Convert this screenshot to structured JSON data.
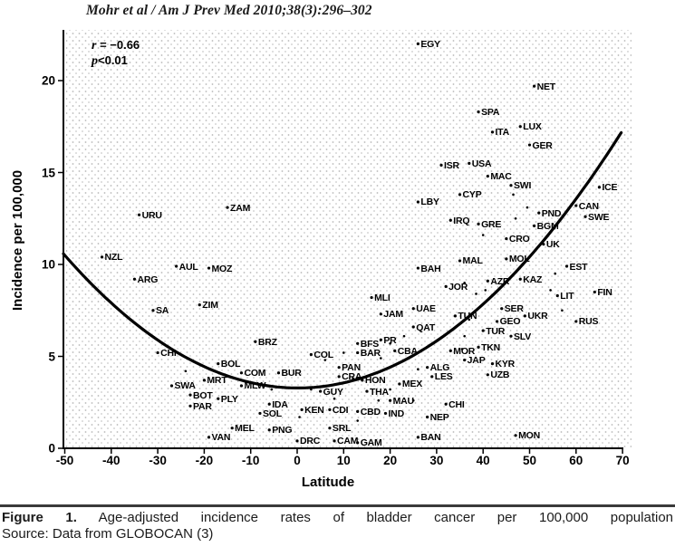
{
  "header": {
    "citation": "Mohr et al / Am J Prev Med 2010;38(3):296–302"
  },
  "chart_data": {
    "type": "scatter",
    "title": "",
    "xlabel": "Latitude",
    "ylabel": "Incidence per 100,000",
    "xlim": [
      -50,
      70
    ],
    "ylim": [
      0,
      22.5
    ],
    "x_ticks": [
      -50,
      -40,
      -30,
      -20,
      -10,
      0,
      10,
      20,
      30,
      40,
      50,
      60,
      70
    ],
    "y_ticks": [
      0,
      5,
      10,
      15,
      20
    ],
    "grid": "fine dotted halftone background, no gridlines",
    "legend": "none",
    "annotation": {
      "r_symbol": "r",
      "r_rest": " = −0.66",
      "p_symbol": "p",
      "p_rest": "<0.01"
    },
    "trend_curve": {
      "type": "quadratic",
      "equation": "incidence = 0.00287·lat² − 0.0008·lat + 3.28",
      "a": 0.00287,
      "b": -0.0008,
      "c": 3.28,
      "lat_range": [
        -50.3,
        70.3
      ],
      "color": "#000000"
    },
    "points": [
      {
        "label": "EGY",
        "lat": 26,
        "inc": 22.0
      },
      {
        "label": "NET",
        "lat": 51,
        "inc": 19.7
      },
      {
        "label": "SPA",
        "lat": 39,
        "inc": 18.3
      },
      {
        "label": "LUX",
        "lat": 48,
        "inc": 17.5
      },
      {
        "label": "ITA",
        "lat": 42,
        "inc": 17.2
      },
      {
        "label": "GER",
        "lat": 50,
        "inc": 16.5
      },
      {
        "label": "USA",
        "lat": 37,
        "inc": 15.5
      },
      {
        "label": "ISR",
        "lat": 31,
        "inc": 15.4
      },
      {
        "label": "MAC",
        "lat": 41,
        "inc": 14.8
      },
      {
        "label": "SWI",
        "lat": 46,
        "inc": 14.3
      },
      {
        "label": "ICE",
        "lat": 65,
        "inc": 14.2
      },
      {
        "label": "CYP",
        "lat": 35,
        "inc": 13.8
      },
      {
        "label": "LBY",
        "lat": 26,
        "inc": 13.4
      },
      {
        "label": "CAN",
        "lat": 60,
        "inc": 13.2
      },
      {
        "label": "ZAM",
        "lat": -15,
        "inc": 13.1
      },
      {
        "label": "PND",
        "lat": 52,
        "inc": 12.8
      },
      {
        "label": "URU",
        "lat": -34,
        "inc": 12.7
      },
      {
        "label": "SWE",
        "lat": 62,
        "inc": 12.6
      },
      {
        "label": "IRQ",
        "lat": 33,
        "inc": 12.4
      },
      {
        "label": "GRE",
        "lat": 39,
        "inc": 12.2
      },
      {
        "label": "BGM",
        "lat": 51,
        "inc": 12.1
      },
      {
        "label": "CRO",
        "lat": 45,
        "inc": 11.4
      },
      {
        "label": "UK",
        "lat": 53,
        "inc": 11.1
      },
      {
        "label": "NZL",
        "lat": -42,
        "inc": 10.4
      },
      {
        "label": "MOL",
        "lat": 45,
        "inc": 10.3
      },
      {
        "label": "MAL",
        "lat": 35,
        "inc": 10.2
      },
      {
        "label": "AUL",
        "lat": -26,
        "inc": 9.9
      },
      {
        "label": "EST",
        "lat": 58,
        "inc": 9.9
      },
      {
        "label": "MOZ",
        "lat": -19,
        "inc": 9.8
      },
      {
        "label": "BAH",
        "lat": 26,
        "inc": 9.8
      },
      {
        "label": "ARG",
        "lat": -35,
        "inc": 9.2
      },
      {
        "label": "KAZ",
        "lat": 48,
        "inc": 9.2
      },
      {
        "label": "AZR",
        "lat": 41,
        "inc": 9.1
      },
      {
        "label": "JOR",
        "lat": 32,
        "inc": 8.8
      },
      {
        "label": "FIN",
        "lat": 64,
        "inc": 8.5
      },
      {
        "label": "LIT",
        "lat": 56,
        "inc": 8.3
      },
      {
        "label": "MLI",
        "lat": 16,
        "inc": 8.2
      },
      {
        "label": "ZIM",
        "lat": -21,
        "inc": 7.8
      },
      {
        "label": "UAE",
        "lat": 25,
        "inc": 7.6
      },
      {
        "label": "SER",
        "lat": 44,
        "inc": 7.6
      },
      {
        "label": "SA",
        "lat": -31,
        "inc": 7.5
      },
      {
        "label": "JAM",
        "lat": 18,
        "inc": 7.3
      },
      {
        "label": "TUN",
        "lat": 34,
        "inc": 7.2
      },
      {
        "label": "UKR",
        "lat": 49,
        "inc": 7.2
      },
      {
        "label": "RUS",
        "lat": 60,
        "inc": 6.9
      },
      {
        "label": "GEO",
        "lat": 43,
        "inc": 6.9
      },
      {
        "label": "QAT",
        "lat": 25,
        "inc": 6.6
      },
      {
        "label": "TUR",
        "lat": 40,
        "inc": 6.4
      },
      {
        "label": "SLV",
        "lat": 46,
        "inc": 6.1
      },
      {
        "label": "PR",
        "lat": 18,
        "inc": 5.9
      },
      {
        "label": "BRZ",
        "lat": -9,
        "inc": 5.8
      },
      {
        "label": "BFS",
        "lat": 13,
        "inc": 5.7
      },
      {
        "label": "TKN",
        "lat": 39,
        "inc": 5.5
      },
      {
        "label": "MOR",
        "lat": 33,
        "inc": 5.3
      },
      {
        "label": "CBA",
        "lat": 21,
        "inc": 5.3
      },
      {
        "label": "BAR",
        "lat": 13,
        "inc": 5.2
      },
      {
        "label": "CHI",
        "lat": -30,
        "inc": 5.2
      },
      {
        "label": "COL",
        "lat": 3,
        "inc": 5.1
      },
      {
        "label": "JAP",
        "lat": 36,
        "inc": 4.8
      },
      {
        "label": "KYR",
        "lat": 42,
        "inc": 4.6
      },
      {
        "label": "BOL",
        "lat": -17,
        "inc": 4.6
      },
      {
        "label": "ALG",
        "lat": 28,
        "inc": 4.4
      },
      {
        "label": "PAN",
        "lat": 9,
        "inc": 4.4
      },
      {
        "label": "COM",
        "lat": -12,
        "inc": 4.1
      },
      {
        "label": "BUR",
        "lat": -4,
        "inc": 4.1
      },
      {
        "label": "UZB",
        "lat": 41,
        "inc": 4.0
      },
      {
        "label": "LES",
        "lat": 29,
        "inc": 3.9
      },
      {
        "label": "CRA",
        "lat": 9,
        "inc": 3.9
      },
      {
        "label": "MRT",
        "lat": -20,
        "inc": 3.7
      },
      {
        "label": "HON",
        "lat": 14,
        "inc": 3.7
      },
      {
        "label": "MEX",
        "lat": 22,
        "inc": 3.5
      },
      {
        "label": "SWA",
        "lat": -27,
        "inc": 3.4
      },
      {
        "label": "MLW",
        "lat": -12,
        "inc": 3.4
      },
      {
        "label": "GUY",
        "lat": 5,
        "inc": 3.1
      },
      {
        "label": "THA",
        "lat": 15,
        "inc": 3.1
      },
      {
        "label": "BOT",
        "lat": -23,
        "inc": 2.9
      },
      {
        "label": "PLY",
        "lat": -17,
        "inc": 2.7
      },
      {
        "label": "MAU",
        "lat": 20,
        "inc": 2.6
      },
      {
        "label": "IDA",
        "lat": -6,
        "inc": 2.4
      },
      {
        "label": "CHI",
        "lat": 32,
        "inc": 2.4
      },
      {
        "label": "PAR",
        "lat": -23,
        "inc": 2.3
      },
      {
        "label": "KEN",
        "lat": 1,
        "inc": 2.1
      },
      {
        "label": "CDI",
        "lat": 7,
        "inc": 2.1
      },
      {
        "label": "CBD",
        "lat": 13,
        "inc": 2.0
      },
      {
        "label": "SOL",
        "lat": -8,
        "inc": 1.9
      },
      {
        "label": "IND",
        "lat": 19,
        "inc": 1.9
      },
      {
        "label": "NEP",
        "lat": 28,
        "inc": 1.7
      },
      {
        "label": "MEL",
        "lat": -14,
        "inc": 1.1
      },
      {
        "label": "SRL",
        "lat": 7,
        "inc": 1.1
      },
      {
        "label": "PNG",
        "lat": -6,
        "inc": 1.0
      },
      {
        "label": "MON",
        "lat": 47,
        "inc": 0.7
      },
      {
        "label": "BAN",
        "lat": 26,
        "inc": 0.6
      },
      {
        "label": "VAN",
        "lat": -19,
        "inc": 0.6
      },
      {
        "label": "DRC",
        "lat": 0,
        "inc": 0.4
      },
      {
        "label": "CAM",
        "lat": 8,
        "inc": 0.4
      },
      {
        "label": "GAM",
        "lat": 13,
        "inc": 0.3
      }
    ],
    "unlabeled_points": [
      [
        46.5,
        13.8
      ],
      [
        49.5,
        13.1
      ],
      [
        47,
        12.5
      ],
      [
        40,
        11.6
      ],
      [
        36,
        9.0
      ],
      [
        38.5,
        8.4
      ],
      [
        55.5,
        9.5
      ],
      [
        54.5,
        8.6
      ],
      [
        57,
        7.5
      ],
      [
        40.5,
        8.6
      ],
      [
        37,
        7.0
      ],
      [
        23,
        6.1
      ],
      [
        20,
        5.7
      ],
      [
        10,
        5.2
      ],
      [
        18,
        4.9
      ],
      [
        26,
        4.3
      ],
      [
        36,
        6.1
      ],
      [
        35.5,
        5.4
      ],
      [
        6,
        4.8
      ],
      [
        12,
        3.8
      ],
      [
        20,
        3.2
      ],
      [
        25,
        2.6
      ],
      [
        8,
        2.7
      ],
      [
        3,
        3.2
      ],
      [
        -5.5,
        3.2
      ],
      [
        0.5,
        1.7
      ],
      [
        13,
        1.5
      ],
      [
        17.5,
        2.6
      ],
      [
        -24,
        4.2
      ]
    ]
  },
  "caption": {
    "figure_label": "Figure 1.",
    "text": "Age-adjusted incidence rates of bladder cancer per 100,000 population",
    "source": "Source: Data from GLOBOCAN (3)"
  }
}
